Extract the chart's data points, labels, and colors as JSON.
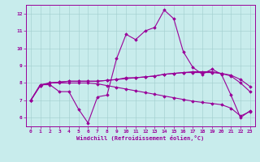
{
  "xlabel": "Windchill (Refroidissement éolien,°C)",
  "background_color": "#c8ecec",
  "line_color": "#990099",
  "xlim": [
    -0.5,
    23.5
  ],
  "ylim": [
    5.5,
    12.5
  ],
  "yticks": [
    6,
    7,
    8,
    9,
    10,
    11,
    12
  ],
  "xticks": [
    0,
    1,
    2,
    3,
    4,
    5,
    6,
    7,
    8,
    9,
    10,
    11,
    12,
    13,
    14,
    15,
    16,
    17,
    18,
    19,
    20,
    21,
    22,
    23
  ],
  "line1_x": [
    0,
    1,
    2,
    3,
    4,
    5,
    6,
    7,
    8,
    9,
    10,
    11,
    12,
    13,
    14,
    15,
    16,
    17,
    18,
    19,
    20,
    21,
    22,
    23
  ],
  "line1_y": [
    7.0,
    7.9,
    7.9,
    7.5,
    7.5,
    6.5,
    5.7,
    7.2,
    7.3,
    9.4,
    10.8,
    10.5,
    11.0,
    11.2,
    12.2,
    11.7,
    9.8,
    8.9,
    8.5,
    8.8,
    8.5,
    7.3,
    6.0,
    6.4
  ],
  "line2_x": [
    0,
    1,
    2,
    3,
    4,
    5,
    6,
    7,
    8,
    9,
    10,
    11,
    12,
    13,
    14,
    15,
    16,
    17,
    18,
    19,
    20,
    21,
    22,
    23
  ],
  "line2_y": [
    7.0,
    7.9,
    8.0,
    8.05,
    8.1,
    8.1,
    8.1,
    8.1,
    8.15,
    8.2,
    8.3,
    8.3,
    8.35,
    8.4,
    8.5,
    8.55,
    8.6,
    8.6,
    8.6,
    8.6,
    8.55,
    8.45,
    8.2,
    7.8
  ],
  "line3_x": [
    0,
    1,
    2,
    3,
    4,
    5,
    6,
    7,
    8,
    9,
    10,
    11,
    12,
    13,
    14,
    15,
    16,
    17,
    18,
    19,
    20,
    21,
    22,
    23
  ],
  "line3_y": [
    7.0,
    7.85,
    8.0,
    8.05,
    8.1,
    8.1,
    8.1,
    8.1,
    8.15,
    8.2,
    8.25,
    8.3,
    8.35,
    8.4,
    8.5,
    8.55,
    8.6,
    8.65,
    8.65,
    8.65,
    8.55,
    8.4,
    8.0,
    7.5
  ],
  "line4_x": [
    0,
    1,
    2,
    3,
    4,
    5,
    6,
    7,
    8,
    9,
    10,
    11,
    12,
    13,
    14,
    15,
    16,
    17,
    18,
    19,
    20,
    21,
    22,
    23
  ],
  "line4_y": [
    7.0,
    7.85,
    8.0,
    8.0,
    8.0,
    8.0,
    8.0,
    7.95,
    7.85,
    7.75,
    7.65,
    7.55,
    7.45,
    7.35,
    7.25,
    7.15,
    7.05,
    6.95,
    6.88,
    6.82,
    6.75,
    6.55,
    6.1,
    6.35
  ]
}
